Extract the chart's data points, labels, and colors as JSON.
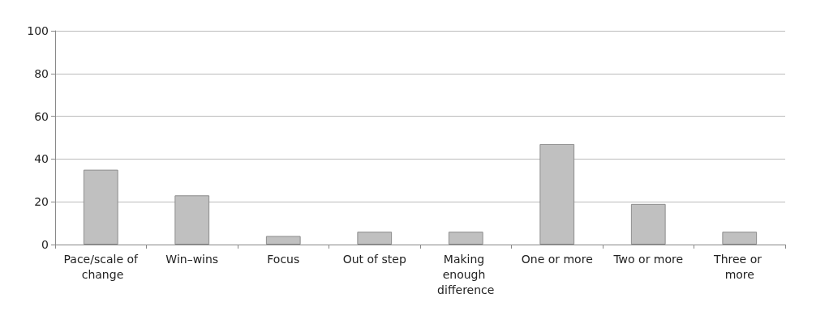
{
  "chart_data": {
    "type": "bar",
    "categories": [
      "Pace/scale of change",
      "Win–wins",
      "Focus",
      "Out of step",
      "Making enough difference",
      "One or more",
      "Two or more",
      "Three or more"
    ],
    "values": [
      35,
      23,
      4,
      6,
      6,
      47,
      19,
      6
    ],
    "color": "#c0c0c0",
    "ylim": [
      0,
      100
    ],
    "yticks": [
      0,
      20,
      40,
      60,
      80,
      100
    ],
    "grid": "y"
  }
}
